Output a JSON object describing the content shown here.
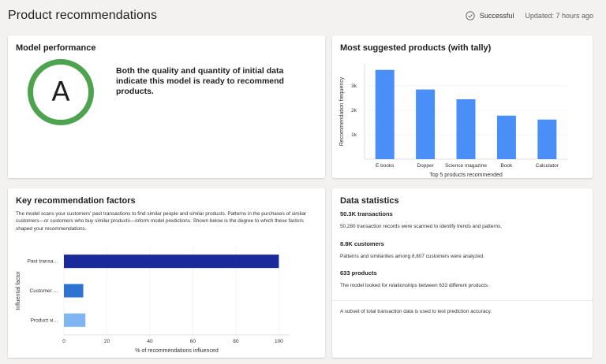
{
  "header": {
    "title": "Product recommendations",
    "status_label": "Successful",
    "updated_label": "Updated: 7 hours ago"
  },
  "performance": {
    "title": "Model performance",
    "grade": "A",
    "grade_color": "#4ea34f",
    "description": "Both the quality and quantity of initial data indicate this model is ready to recommend products."
  },
  "products": {
    "title": "Most suggested products (with tally)"
  },
  "factors": {
    "title": "Key recommendation factors",
    "description": "The model scans your customers' past transactions to find similar people and similar products. Patterns in the purchases of similar customers—or customers who buy similar products—inform model predictions. Shown below is the degree to which these factors shaped your recommendations."
  },
  "stats": {
    "title": "Data statistics",
    "items": [
      {
        "value": "50.3K  transactions",
        "desc": "50,280 transaction records were scanned to identify trends and patterns."
      },
      {
        "value": "8.8K  customers",
        "desc": "Patterns and similarities among 8,807 customers were analyzed."
      },
      {
        "value": "633  products",
        "desc": "The model looked for relationships between 633 different products."
      }
    ],
    "footer": "A subset of total transaction data is used to test prediction accuracy."
  },
  "chart_data": [
    {
      "type": "bar",
      "categories": [
        "E books",
        "Dopper",
        "Science magazine",
        "Book",
        "Calculator"
      ],
      "values": [
        3650,
        2850,
        2450,
        1780,
        1620
      ],
      "xlabel": "Top 5 products recommended",
      "ylabel": "Recommendation frequency",
      "yticks": [
        "1k",
        "2k",
        "3k"
      ],
      "ylim": [
        0,
        3900
      ],
      "color": "#4a8ef7",
      "grid": true
    },
    {
      "type": "bar",
      "orientation": "horizontal",
      "categories": [
        "Past transa…",
        "Customer …",
        "Product si…"
      ],
      "values": [
        100,
        9,
        10
      ],
      "colors": [
        "#1b2a9a",
        "#2e73d1",
        "#7eb5f2"
      ],
      "xlabel": "% of recommendations influenced",
      "ylabel": "Influential factor",
      "xticks": [
        0,
        20,
        40,
        60,
        80,
        100
      ],
      "xlim": [
        0,
        105
      ],
      "grid": true
    }
  ]
}
